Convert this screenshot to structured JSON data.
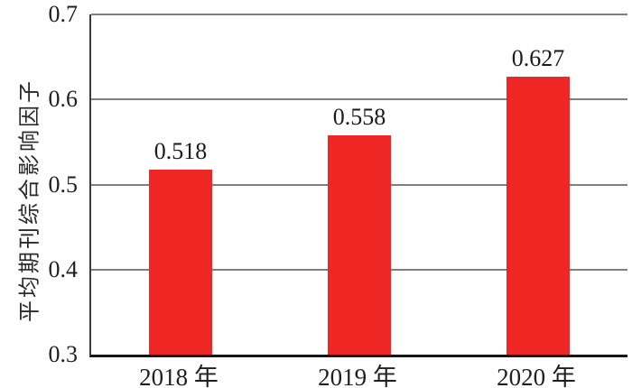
{
  "chart_data": {
    "type": "bar",
    "title": "",
    "xlabel": "",
    "ylabel": "平均期刊综合影响因子",
    "categories": [
      "2018 年",
      "2019 年",
      "2020 年"
    ],
    "values": [
      0.518,
      0.558,
      0.627
    ],
    "data_labels": [
      "0.518",
      "0.558",
      "0.627"
    ],
    "ylim": [
      0.3,
      0.7
    ],
    "yticks": [
      0.3,
      0.4,
      0.5,
      0.6,
      0.7
    ],
    "ytick_labels": [
      "0.3",
      "0.4",
      "0.5",
      "0.6",
      "0.7"
    ],
    "grid": true,
    "legend": "none",
    "bar_color": "#EE2624",
    "grid_color": "#7F7F7F",
    "axis_color": "#3A3A3A",
    "baseline_color": "#151515",
    "text_color": "#1F1F1F"
  }
}
